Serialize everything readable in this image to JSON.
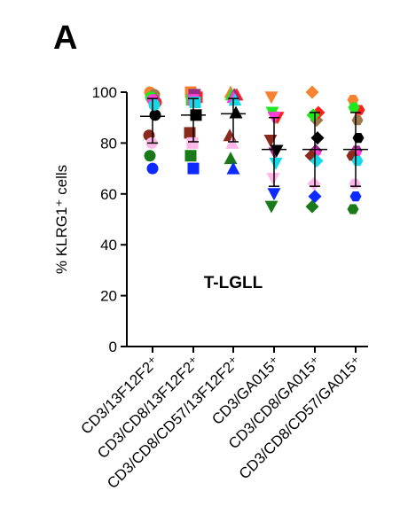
{
  "panel_label": "A",
  "chart_data": {
    "type": "scatter",
    "title": "",
    "ylabel": "% KLRG1⁺ cells",
    "annotation": "T-LGLL",
    "ylim": [
      0,
      100
    ],
    "yticks": [
      "0",
      "20",
      "40",
      "60",
      "80",
      "100"
    ],
    "categories": [
      "CD3/13F12F2⁺",
      "CD3/CD8/13F12F2⁺",
      "CD3/CD8/CD57/13F12F2⁺",
      "CD3/GA015⁺",
      "CD3/CD8/GA015⁺",
      "CD3/CD8/CD57/GA015⁺"
    ],
    "markers": [
      "circle",
      "square",
      "triangle",
      "triangle-down",
      "diamond",
      "hexagon"
    ],
    "mean": [
      90.5,
      91,
      91.5,
      77.5,
      77.5,
      77.5
    ],
    "sd_upper": [
      97.5,
      97.5,
      97.5,
      90,
      92,
      92
    ],
    "sd_lower": [
      80,
      80.5,
      80.5,
      63,
      63,
      63
    ],
    "series": [
      {
        "color": "#f58231",
        "values": [
          100,
          100,
          100,
          98,
          100,
          97
        ]
      },
      {
        "color": "#a0784a",
        "values": [
          99,
          99,
          99,
          90,
          89,
          89
        ]
      },
      {
        "color": "#ff1f1f",
        "values": [
          96,
          98,
          99,
          90,
          92,
          93
        ]
      },
      {
        "color": "#1fe81f",
        "values": [
          98,
          97,
          99,
          92,
          91,
          94
        ]
      },
      {
        "color": "#9a2a8a",
        "values": [
          97,
          99,
          99,
          76,
          77,
          77
        ]
      },
      {
        "color": "#ff3bd8",
        "values": [
          97,
          97,
          98,
          90,
          76,
          76
        ]
      },
      {
        "color": "#8b2a1a",
        "values": [
          83,
          84,
          83,
          81,
          75,
          75
        ]
      },
      {
        "color": "#000000",
        "values": [
          91,
          91,
          92,
          77,
          82,
          82
        ]
      },
      {
        "color": "#ffb6e8",
        "values": [
          80,
          80,
          80,
          66,
          64,
          64
        ]
      },
      {
        "color": "#17d8e6",
        "values": [
          95,
          96,
          97,
          72,
          73,
          73
        ]
      },
      {
        "color": "#1a7a1a",
        "values": [
          75,
          75,
          74,
          55,
          55,
          54
        ]
      },
      {
        "color": "#0d2bff",
        "values": [
          70,
          70,
          70,
          60,
          59,
          59
        ]
      }
    ]
  }
}
